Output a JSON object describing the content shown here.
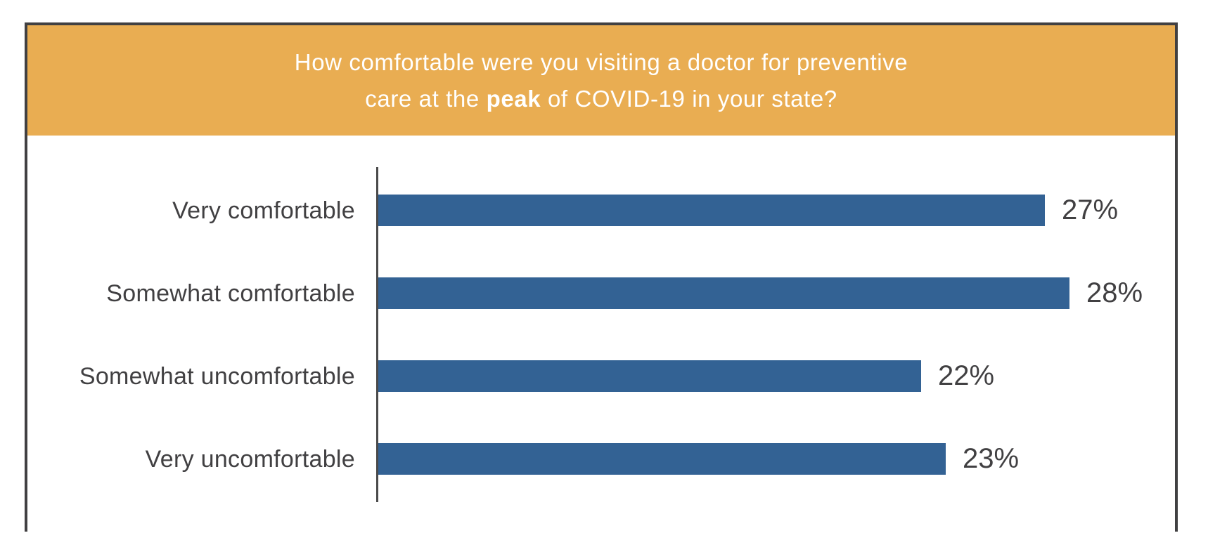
{
  "title": {
    "line1": "How comfortable were you visiting a doctor for preventive",
    "line2_prefix": "care at the ",
    "line2_bold": "peak",
    "line2_suffix": " of COVID-19 in your state?"
  },
  "chart_data": {
    "type": "bar",
    "orientation": "horizontal",
    "title": "How comfortable were you visiting a doctor for preventive care at the peak of COVID-19 in your state?",
    "categories": [
      "Very comfortable",
      "Somewhat comfortable",
      "Somewhat uncomfortable",
      "Very uncomfortable"
    ],
    "values": [
      27,
      28,
      22,
      23
    ],
    "value_labels": [
      "27%",
      "28%",
      "22%",
      "23%"
    ],
    "unit": "percent",
    "xlabel": "",
    "ylabel": "",
    "xlim": [
      0,
      30
    ],
    "grid": false,
    "legend": false,
    "bar_order_top_to_bottom": true
  },
  "colors": {
    "header_bg": "#E9AD52",
    "title_text": "#FFFFFF",
    "bar": "#336294",
    "label_text": "#414042",
    "value_text": "#414042",
    "axis": "#4A4A4B",
    "border": "#414042",
    "background": "#FFFFFF"
  }
}
